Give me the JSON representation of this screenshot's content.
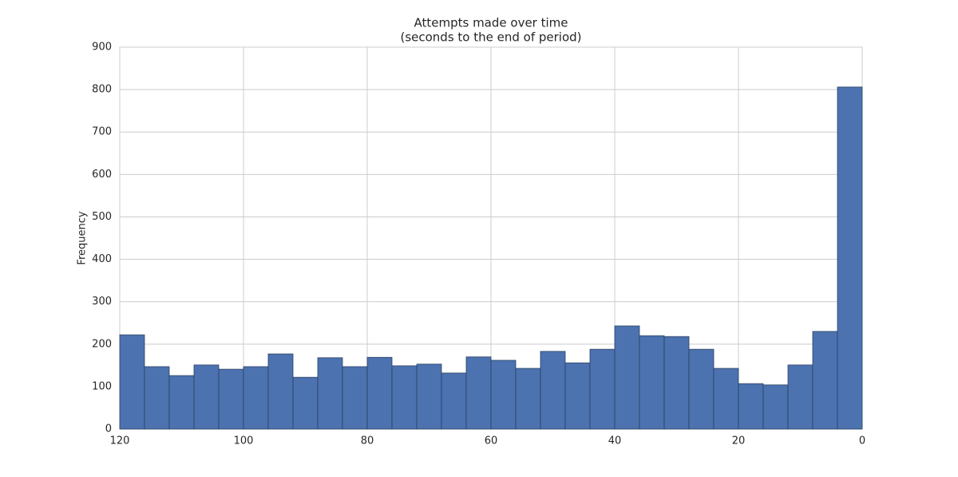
{
  "chart_data": {
    "type": "histogram",
    "title": "Attempts made over time",
    "subtitle": "(seconds to the end of period)",
    "y_label": "Frequency",
    "bins": [
      120,
      116,
      112,
      108,
      104,
      100,
      96,
      92,
      88,
      84,
      80,
      76,
      72,
      68,
      64,
      60,
      56,
      52,
      48,
      44,
      40,
      36,
      32,
      28,
      24,
      20,
      16,
      12,
      8,
      4,
      0
    ],
    "counts": [
      222,
      147,
      126,
      151,
      141,
      147,
      177,
      122,
      168,
      147,
      169,
      149,
      153,
      132,
      170,
      162,
      143,
      183,
      156,
      188,
      243,
      220,
      218,
      188,
      143,
      107,
      104,
      151,
      230,
      806
    ],
    "color": "#4c72b0",
    "xlim": [
      120,
      0
    ],
    "xticks": [
      120,
      100,
      80,
      60,
      40,
      20,
      0
    ],
    "ylim": [
      0,
      900
    ],
    "yticks": [
      0,
      100,
      200,
      300,
      400,
      500,
      600,
      700,
      800,
      900
    ],
    "grid": true
  }
}
